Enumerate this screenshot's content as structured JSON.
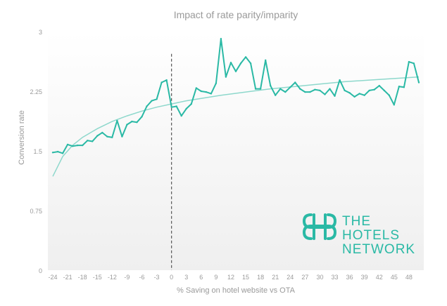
{
  "chart_data": {
    "type": "line",
    "title": "Impact of rate parity/imparity",
    "xlabel": "% Saving on hotel website vs OTA",
    "ylabel": "Conversion rate",
    "xlim": [
      -25,
      51
    ],
    "ylim": [
      0,
      3
    ],
    "x_ticks": [
      "-24",
      "-21",
      "-18",
      "-15",
      "-12",
      "-9",
      "-6",
      "-3",
      "0",
      "3",
      "6",
      "9",
      "12",
      "15",
      "18",
      "21",
      "24",
      "27",
      "30",
      "33",
      "36",
      "39",
      "42",
      "45",
      "48"
    ],
    "y_ticks": [
      "0",
      "0.75",
      "1.5",
      "2.25",
      "3"
    ],
    "grid": false,
    "reference_line_x": 0,
    "colors": {
      "series": "#2ab9a5",
      "trend": "#8ed8cc",
      "reference": "#555555",
      "text": "#9a9a9a",
      "logo": "#2ab9a5"
    },
    "series": [
      {
        "x": [
          -24,
          -23,
          -22,
          -21,
          -20,
          -19,
          -18,
          -17,
          -16,
          -15,
          -14,
          -13,
          -12,
          -11,
          -10,
          -9,
          -8,
          -7,
          -6,
          -5,
          -4,
          -3,
          -2,
          -1,
          0,
          1,
          2,
          3,
          4,
          5,
          6,
          7,
          8,
          9,
          10,
          11,
          12,
          13,
          14,
          15,
          16,
          17,
          18,
          19,
          20,
          21,
          22,
          23,
          24,
          25,
          26,
          27,
          28,
          29,
          30,
          31,
          32,
          33,
          34,
          35,
          36,
          37,
          38,
          39,
          40,
          41,
          42,
          43,
          44,
          45,
          46,
          47,
          48,
          49,
          50
        ],
        "values": [
          1.48,
          1.49,
          1.47,
          1.58,
          1.56,
          1.57,
          1.57,
          1.63,
          1.62,
          1.69,
          1.73,
          1.68,
          1.67,
          1.88,
          1.68,
          1.83,
          1.87,
          1.86,
          1.93,
          2.06,
          2.13,
          2.15,
          2.36,
          2.39,
          2.05,
          2.06,
          1.94,
          2.03,
          2.09,
          2.29,
          2.25,
          2.24,
          2.22,
          2.35,
          2.91,
          2.43,
          2.61,
          2.5,
          2.6,
          2.68,
          2.6,
          2.28,
          2.28,
          2.64,
          2.32,
          2.2,
          2.28,
          2.24,
          2.3,
          2.36,
          2.28,
          2.24,
          2.24,
          2.27,
          2.26,
          2.21,
          2.28,
          2.19,
          2.39,
          2.26,
          2.23,
          2.18,
          2.22,
          2.2,
          2.26,
          2.27,
          2.32,
          2.26,
          2.2,
          2.08,
          2.31,
          2.3,
          2.62,
          2.6,
          2.36
        ]
      }
    ],
    "trendline": {
      "type": "logarithmic",
      "x": [
        -24,
        -22,
        -20,
        -18,
        -15,
        -12,
        -9,
        -6,
        -3,
        0,
        3,
        6,
        10,
        15,
        20,
        25,
        30,
        35,
        40,
        45,
        50
      ],
      "values": [
        1.18,
        1.43,
        1.57,
        1.67,
        1.78,
        1.87,
        1.94,
        2.0,
        2.05,
        2.09,
        2.13,
        2.16,
        2.2,
        2.24,
        2.28,
        2.31,
        2.34,
        2.37,
        2.39,
        2.41,
        2.43
      ]
    }
  },
  "logo": {
    "line1": "THE",
    "line2": "HOTELS",
    "line3": "NETWORK"
  }
}
